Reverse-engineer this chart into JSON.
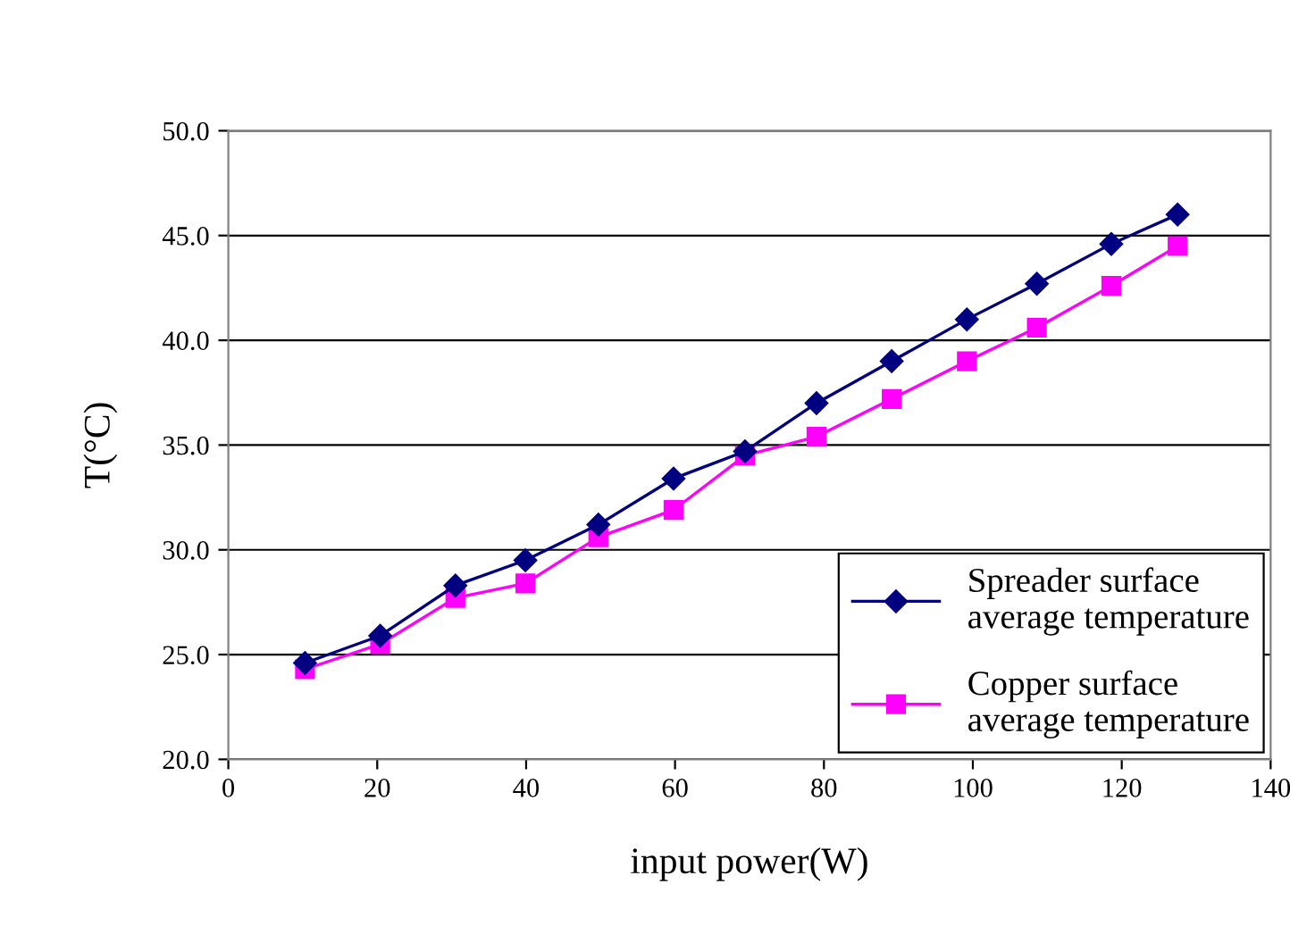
{
  "chart_data": {
    "type": "line",
    "xlabel": "input power(W)",
    "ylabel": "T(°C)",
    "xlim": [
      0,
      140
    ],
    "xticks": [
      0,
      20,
      40,
      60,
      80,
      100,
      120,
      140
    ],
    "ylim": [
      20,
      50
    ],
    "yticks": [
      {
        "value": 20,
        "label": "20.0"
      },
      {
        "value": 25,
        "label": "25.0"
      },
      {
        "value": 30,
        "label": "30.0"
      },
      {
        "value": 35,
        "label": "35.0"
      },
      {
        "value": 40,
        "label": "40.0"
      },
      {
        "value": 45,
        "label": "45.0"
      },
      {
        "value": 50,
        "label": "50.0"
      }
    ],
    "grid": "y",
    "legend": "bottom right",
    "series": [
      {
        "name": "Spreader surface average temperature",
        "color": "#000080",
        "marker": "diamond",
        "x": [
          10.3,
          20.4,
          30.5,
          39.9,
          49.7,
          59.8,
          69.4,
          79.0,
          89.1,
          99.2,
          108.6,
          118.6,
          127.5
        ],
        "values": [
          24.6,
          25.9,
          28.3,
          29.5,
          31.2,
          33.4,
          34.7,
          37.0,
          39.0,
          41.0,
          42.7,
          44.6,
          46.0
        ]
      },
      {
        "name": "Copper surface average temperature",
        "color": "#ff00ff",
        "marker": "square",
        "x": [
          10.3,
          20.4,
          30.5,
          39.9,
          49.7,
          59.8,
          69.4,
          79.0,
          89.1,
          99.2,
          108.6,
          118.6,
          127.5
        ],
        "values": [
          24.3,
          25.5,
          27.7,
          28.4,
          30.6,
          31.9,
          34.5,
          35.4,
          37.2,
          39.0,
          40.6,
          42.6,
          44.5
        ]
      }
    ]
  }
}
